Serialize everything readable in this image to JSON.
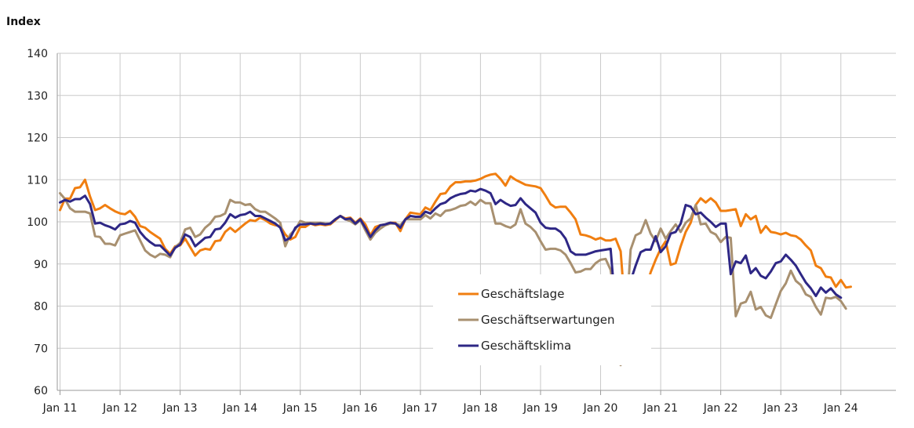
{
  "chart_data": {
    "type": "line",
    "title": "",
    "xlabel": "",
    "ylabel": "Index",
    "ylim": [
      60,
      140
    ],
    "yticks": [
      60,
      70,
      80,
      90,
      100,
      110,
      120,
      130,
      140
    ],
    "grid": true,
    "legend_position": "center-right",
    "x_start": "2011-01",
    "x_ticks": [
      "Jan 11",
      "Jan 12",
      "Jan 13",
      "Jan 14",
      "Jan 15",
      "Jan 16",
      "Jan 17",
      "Jan 18",
      "Jan 19",
      "Jan 20",
      "Jan 21",
      "Jan 22",
      "Jan 23",
      "Jan 24"
    ],
    "series": [
      {
        "name": "Geschäftslage",
        "color": "#f07e10",
        "values": [
          102.8,
          105.5,
          105.5,
          108.0,
          108.2,
          110.0,
          106.0,
          102.8,
          103.2,
          104.0,
          103.2,
          102.5,
          102.0,
          101.8,
          102.6,
          101.2,
          99.0,
          98.6,
          97.6,
          96.8,
          96.0,
          93.6,
          92.4,
          94.2,
          94.4,
          96.0,
          94.0,
          92.0,
          93.2,
          93.6,
          93.4,
          95.4,
          95.6,
          97.6,
          98.6,
          97.6,
          98.6,
          99.6,
          100.4,
          100.2,
          101.0,
          100.4,
          99.6,
          99.2,
          99.0,
          97.0,
          95.8,
          96.4,
          98.8,
          98.8,
          99.6,
          99.2,
          99.4,
          99.2,
          99.4,
          100.4,
          101.4,
          100.8,
          101.0,
          99.8,
          100.8,
          99.4,
          96.8,
          98.8,
          99.2,
          99.4,
          99.8,
          99.8,
          97.8,
          100.6,
          102.2,
          102.0,
          101.8,
          103.4,
          102.8,
          104.8,
          106.6,
          106.8,
          108.4,
          109.4,
          109.4,
          109.6,
          109.6,
          109.8,
          110.2,
          110.8,
          111.2,
          111.4,
          110.2,
          108.6,
          110.8,
          110.0,
          109.4,
          108.8,
          108.6,
          108.4,
          108.0,
          106.2,
          104.2,
          103.4,
          103.6,
          103.6,
          102.2,
          100.6,
          97.0,
          96.8,
          96.4,
          95.8,
          96.2,
          95.6,
          95.6,
          96.0,
          93.0,
          77.6,
          66.4,
          72.0,
          80.0,
          84.0,
          88.0,
          91.0,
          93.6,
          95.4,
          89.8,
          90.2,
          94.2,
          97.6,
          99.8,
          104.0,
          105.6,
          104.6,
          105.6,
          104.6,
          102.6,
          102.6,
          102.8,
          103.0,
          99.0,
          101.8,
          100.6,
          101.4,
          97.4,
          99.0,
          97.6,
          97.4,
          97.0,
          97.4,
          96.8,
          96.6,
          95.8,
          94.4,
          93.2,
          89.6,
          89.0,
          87.0,
          86.8,
          84.6,
          86.2,
          84.4,
          84.6
        ]
      },
      {
        "name": "Geschäftserwartungen",
        "color": "#a89070",
        "values": [
          106.8,
          105.4,
          103.2,
          102.4,
          102.4,
          102.4,
          102.0,
          96.6,
          96.4,
          94.8,
          94.8,
          94.4,
          96.8,
          97.2,
          97.6,
          98.0,
          95.6,
          93.2,
          92.2,
          91.6,
          92.4,
          92.2,
          91.6,
          94.0,
          95.0,
          98.2,
          98.6,
          96.4,
          97.0,
          98.6,
          99.6,
          101.2,
          101.4,
          102.0,
          105.2,
          104.6,
          104.6,
          104.0,
          104.2,
          103.0,
          102.4,
          102.4,
          101.6,
          100.8,
          99.8,
          94.2,
          97.0,
          98.2,
          100.2,
          99.8,
          99.8,
          99.8,
          99.8,
          99.6,
          99.6,
          100.6,
          101.4,
          100.6,
          100.2,
          99.4,
          100.4,
          98.0,
          95.8,
          97.4,
          98.4,
          99.2,
          99.6,
          99.6,
          99.2,
          100.6,
          100.6,
          100.6,
          100.6,
          101.6,
          100.8,
          102.0,
          101.4,
          102.6,
          102.8,
          103.2,
          103.8,
          104.0,
          104.8,
          104.0,
          105.2,
          104.4,
          104.4,
          99.6,
          99.6,
          99.0,
          98.6,
          99.4,
          103.0,
          99.6,
          98.8,
          97.6,
          95.4,
          93.4,
          93.6,
          93.6,
          93.2,
          92.2,
          90.2,
          88.0,
          88.2,
          88.8,
          88.8,
          90.2,
          91.0,
          91.2,
          88.6,
          80.6,
          66.0,
          75.0,
          93.4,
          96.8,
          97.4,
          100.4,
          97.2,
          95.4,
          98.4,
          96.0,
          97.8,
          99.4,
          97.6,
          99.8,
          100.8,
          104.0,
          99.4,
          99.6,
          97.6,
          97.0,
          95.2,
          96.4,
          96.2,
          77.6,
          80.6,
          81.0,
          83.4,
          79.2,
          79.8,
          77.8,
          77.2,
          80.4,
          83.6,
          85.4,
          88.4,
          86.0,
          85.0,
          82.8,
          82.2,
          79.8,
          78.0,
          82.0,
          81.8,
          82.2,
          81.2,
          79.4
        ]
      },
      {
        "name": "Geschäftsklima",
        "color": "#2e2785",
        "values": [
          104.6,
          105.2,
          104.8,
          105.4,
          105.4,
          106.2,
          104.2,
          99.6,
          99.8,
          99.2,
          98.8,
          98.2,
          99.4,
          99.6,
          100.2,
          99.8,
          97.6,
          96.2,
          95.2,
          94.4,
          94.4,
          93.2,
          92.0,
          93.8,
          94.6,
          97.0,
          96.4,
          94.2,
          95.2,
          96.2,
          96.4,
          98.2,
          98.4,
          99.8,
          101.8,
          101.0,
          101.6,
          101.8,
          102.4,
          101.4,
          101.4,
          100.8,
          100.2,
          99.6,
          98.6,
          95.6,
          96.2,
          98.6,
          99.4,
          99.4,
          99.6,
          99.4,
          99.6,
          99.4,
          99.6,
          100.6,
          101.4,
          100.6,
          100.8,
          99.6,
          100.6,
          98.6,
          96.4,
          98.0,
          99.2,
          99.4,
          99.8,
          99.6,
          98.6,
          100.6,
          101.4,
          101.2,
          101.2,
          102.4,
          102.0,
          103.2,
          104.2,
          104.6,
          105.6,
          106.2,
          106.6,
          106.8,
          107.4,
          107.2,
          107.8,
          107.4,
          106.8,
          104.2,
          105.2,
          104.4,
          103.8,
          104.0,
          105.6,
          104.2,
          103.2,
          102.2,
          99.8,
          98.6,
          98.4,
          98.4,
          97.6,
          96.0,
          93.0,
          92.2,
          92.2,
          92.2,
          92.6,
          93.0,
          93.2,
          93.4,
          93.6,
          79.0,
          70.0,
          74.0,
          86.0,
          89.6,
          92.8,
          93.4,
          93.4,
          96.6,
          92.8,
          94.2,
          97.2,
          97.6,
          99.6,
          104.0,
          103.6,
          101.8,
          102.2,
          101.0,
          100.0,
          98.8,
          99.6,
          99.6,
          87.6,
          90.6,
          90.2,
          92.0,
          87.8,
          89.0,
          87.2,
          86.6,
          88.2,
          90.2,
          90.6,
          92.2,
          91.0,
          89.6,
          87.6,
          85.6,
          84.2,
          82.4,
          84.4,
          83.2,
          84.2,
          82.8,
          82.0
        ]
      }
    ]
  }
}
